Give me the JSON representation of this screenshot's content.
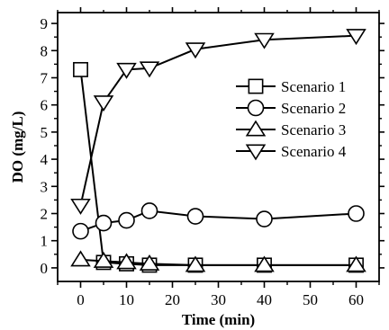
{
  "chart_data": {
    "type": "line",
    "xlabel": "Time (min)",
    "ylabel": "DO (mg/L)",
    "xlim": [
      -5,
      65
    ],
    "ylim": [
      -0.5,
      9.4
    ],
    "xticks": [
      0,
      10,
      20,
      30,
      40,
      50,
      60
    ],
    "yticks": [
      0,
      1,
      2,
      3,
      4,
      5,
      6,
      7,
      8,
      9
    ],
    "legend_position": "right",
    "grid": false,
    "series": [
      {
        "name": "Scenario 1",
        "marker": "square",
        "x": [
          0,
          5,
          10,
          15,
          25,
          40,
          60
        ],
        "y": [
          7.3,
          0.2,
          0.15,
          0.1,
          0.1,
          0.1,
          0.1
        ]
      },
      {
        "name": "Scenario 2",
        "marker": "circle",
        "x": [
          0,
          5,
          10,
          15,
          25,
          40,
          60
        ],
        "y": [
          1.35,
          1.65,
          1.75,
          2.1,
          1.9,
          1.8,
          2.0
        ]
      },
      {
        "name": "Scenario 3",
        "marker": "triangle-up",
        "x": [
          0,
          5,
          10,
          15,
          25,
          40,
          60
        ],
        "y": [
          0.3,
          0.25,
          0.2,
          0.15,
          0.1,
          0.1,
          0.1
        ]
      },
      {
        "name": "Scenario 4",
        "marker": "triangle-down",
        "x": [
          0,
          5,
          10,
          15,
          25,
          40,
          60
        ],
        "y": [
          2.3,
          6.1,
          7.3,
          7.35,
          8.05,
          8.4,
          8.55
        ]
      }
    ]
  }
}
